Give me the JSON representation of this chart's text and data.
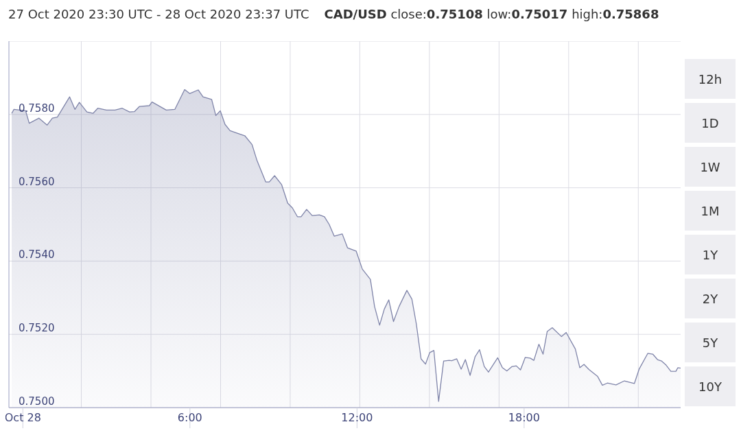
{
  "chart_data": {
    "type": "area",
    "title": "27 Oct 2020 23:30 UTC - 28 Oct 2020 23:37 UTC",
    "subtitle": "CAD/USD close:0.75108 low:0.75017 high:0.75868",
    "annotations": [
      "12h",
      "1D",
      "1W",
      "1M",
      "1Y",
      "2Y",
      "5Y",
      "10Y"
    ],
    "color": "#7f84a9",
    "x": [
      -0.4,
      -0.32,
      0.1,
      0.23,
      0.58,
      0.87,
      1.06,
      1.24,
      1.68,
      1.87,
      2.03,
      2.3,
      2.52,
      2.69,
      3.0,
      3.31,
      3.57,
      3.83,
      4.01,
      4.19,
      4.54,
      4.64,
      5.15,
      5.46,
      5.81,
      5.99,
      6.3,
      6.47,
      6.78,
      6.93,
      7.09,
      7.26,
      7.44,
      7.7,
      7.97,
      8.23,
      8.41,
      8.72,
      8.85,
      9.04,
      9.29,
      9.51,
      9.68,
      9.86,
      9.99,
      10.19,
      10.39,
      10.65,
      10.83,
      11.0,
      11.18,
      11.47,
      11.66,
      11.97,
      12.19,
      12.48,
      12.63,
      12.81,
      12.98,
      13.14,
      13.31,
      13.51,
      13.79,
      13.97,
      14.13,
      14.3,
      14.46,
      14.61,
      14.76,
      14.93,
      15.11,
      15.31,
      15.4,
      15.58,
      15.74,
      15.89,
      16.06,
      16.24,
      16.4,
      16.57,
      16.72,
      17.05,
      17.22,
      17.38,
      17.56,
      17.72,
      17.87,
      18.04,
      18.22,
      18.35,
      18.53,
      18.68,
      18.83,
      19.01,
      19.34,
      19.51,
      19.84,
      20.0,
      20.15,
      20.33,
      20.64,
      20.81,
      20.99,
      21.3,
      21.6,
      21.96,
      22.13,
      22.44,
      22.62,
      22.79,
      22.94,
      23.1,
      23.27,
      23.45,
      23.52,
      23.62
    ],
    "values": [
      0.75803,
      0.75814,
      0.7581,
      0.75776,
      0.7579,
      0.75771,
      0.7579,
      0.75793,
      0.75848,
      0.75814,
      0.75833,
      0.75807,
      0.75803,
      0.75817,
      0.75812,
      0.75812,
      0.75817,
      0.75807,
      0.75808,
      0.75822,
      0.75824,
      0.75834,
      0.75812,
      0.75814,
      0.75868,
      0.75857,
      0.75867,
      0.75848,
      0.75841,
      0.75797,
      0.7581,
      0.75773,
      0.75756,
      0.75749,
      0.75742,
      0.75718,
      0.75674,
      0.75616,
      0.75616,
      0.75633,
      0.75609,
      0.75558,
      0.75545,
      0.75521,
      0.75521,
      0.75541,
      0.75524,
      0.75526,
      0.75521,
      0.755,
      0.75468,
      0.75474,
      0.75436,
      0.75427,
      0.75378,
      0.7535,
      0.75276,
      0.75225,
      0.75269,
      0.75294,
      0.75235,
      0.75276,
      0.7532,
      0.75296,
      0.75228,
      0.75133,
      0.75119,
      0.7515,
      0.75156,
      0.75017,
      0.75127,
      0.75129,
      0.75128,
      0.75133,
      0.75105,
      0.75131,
      0.75088,
      0.75139,
      0.75158,
      0.75112,
      0.75097,
      0.75136,
      0.75109,
      0.751,
      0.75112,
      0.75114,
      0.75103,
      0.75137,
      0.75135,
      0.75129,
      0.75173,
      0.75146,
      0.75208,
      0.75218,
      0.75194,
      0.75205,
      0.7516,
      0.75109,
      0.75118,
      0.75104,
      0.75085,
      0.75061,
      0.75067,
      0.75062,
      0.75073,
      0.75066,
      0.75105,
      0.75148,
      0.75146,
      0.75131,
      0.75127,
      0.75116,
      0.75099,
      0.75099,
      0.75109,
      0.75108
    ],
    "xlim": [
      -0.5,
      23.62
    ],
    "xticks": [
      {
        "value": 0,
        "label": "Oct 28"
      },
      {
        "value": 2.1,
        "label": null
      },
      {
        "value": 4.6,
        "label": null
      },
      {
        "value": 6,
        "label": "6:00"
      },
      {
        "value": 7.1,
        "label": null
      },
      {
        "value": 9.6,
        "label": null
      },
      {
        "value": 12,
        "label": "12:00"
      },
      {
        "value": 12.1,
        "label": null
      },
      {
        "value": 14.6,
        "label": null
      },
      {
        "value": 17.1,
        "label": null
      },
      {
        "value": 18,
        "label": "18:00"
      },
      {
        "value": 19.6,
        "label": null
      },
      {
        "value": 22.1,
        "label": null
      }
    ],
    "ylim": [
      0.75,
      0.76
    ],
    "yticks": [
      {
        "value": 0.75,
        "label": "0.7500"
      },
      {
        "value": 0.752,
        "label": "0.7520"
      },
      {
        "value": 0.754,
        "label": "0.7540"
      },
      {
        "value": 0.756,
        "label": "0.7560"
      },
      {
        "value": 0.758,
        "label": "0.7580"
      },
      {
        "value": 0.76,
        "label": null
      }
    ],
    "grid": true
  }
}
